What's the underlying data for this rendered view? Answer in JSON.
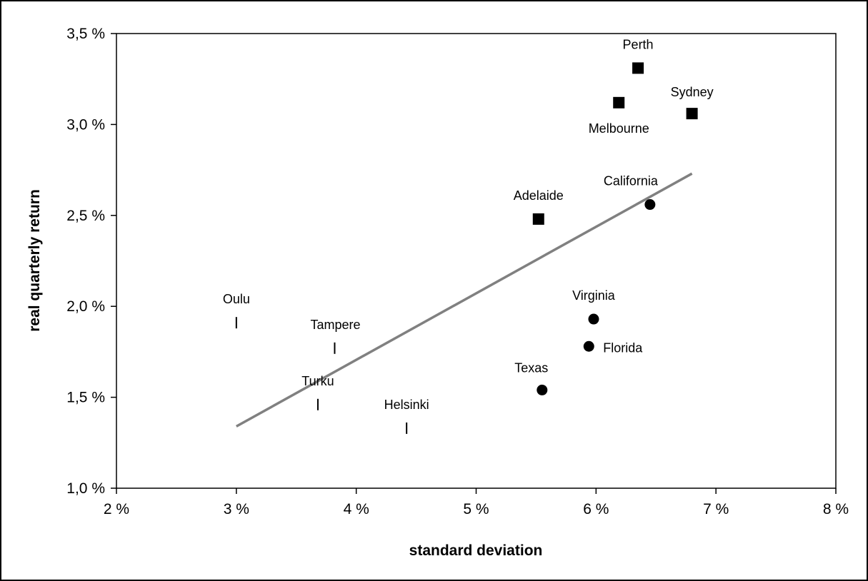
{
  "chart_data": {
    "type": "scatter",
    "title": "",
    "xlabel": "standard deviation",
    "ylabel": "real quarterly return",
    "xlim": [
      2,
      8
    ],
    "ylim": [
      1.0,
      3.5
    ],
    "x_ticks": [
      "2 %",
      "3 %",
      "4 %",
      "5 %",
      "6 %",
      "7 %",
      "8 %"
    ],
    "y_ticks": [
      "1,0 %",
      "1,5 %",
      "2,0 %",
      "2,5 %",
      "3,0 %",
      "3,5 %"
    ],
    "grid": false,
    "legend": "none",
    "series": [
      {
        "marker": "square",
        "points": [
          {
            "label": "Perth",
            "x": 6.35,
            "y": 3.31
          },
          {
            "label": "Melbourne",
            "x": 6.19,
            "y": 3.12
          },
          {
            "label": "Sydney",
            "x": 6.8,
            "y": 3.06
          },
          {
            "label": "Adelaide",
            "x": 5.52,
            "y": 2.48
          }
        ]
      },
      {
        "marker": "circle",
        "points": [
          {
            "label": "California",
            "x": 6.45,
            "y": 2.56
          },
          {
            "label": "Virginia",
            "x": 5.98,
            "y": 1.93
          },
          {
            "label": "Florida",
            "x": 5.94,
            "y": 1.78
          },
          {
            "label": "Texas",
            "x": 5.55,
            "y": 1.54
          }
        ]
      },
      {
        "marker": "dash",
        "points": [
          {
            "label": "Oulu",
            "x": 3.0,
            "y": 1.91
          },
          {
            "label": "Tampere",
            "x": 3.82,
            "y": 1.77
          },
          {
            "label": "Turku",
            "x": 3.68,
            "y": 1.46
          },
          {
            "label": "Helsinki",
            "x": 4.42,
            "y": 1.33
          }
        ]
      }
    ],
    "trendline": {
      "x": [
        3.0,
        6.8
      ],
      "y": [
        1.34,
        2.73
      ],
      "color": "#808080"
    }
  }
}
